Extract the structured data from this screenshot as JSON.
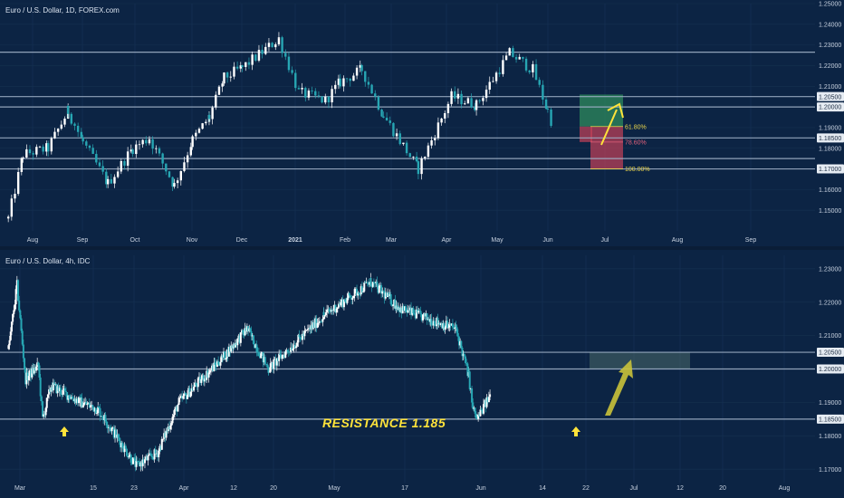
{
  "panes": [
    {
      "title": "Euro / U.S. Dollar, 1D, FOREX.com"
    },
    {
      "title": "Euro / U.S. Dollar, 4h, IDC"
    }
  ],
  "chart_data": [
    {
      "type": "candlestick",
      "timeframe": "1D",
      "ylim": [
        1.14,
        1.25
      ],
      "y_ticks": [
        "1.15000",
        "1.16000",
        "1.17000",
        "1.18000",
        "1.18500",
        "1.19000",
        "1.20000",
        "1.20500",
        "1.21000",
        "1.22000",
        "1.23000",
        "1.24000",
        "1.25000"
      ],
      "x_ticks": [
        "Aug",
        "Sep",
        "Oct",
        "Nov",
        "Dec",
        "2021",
        "Feb",
        "Mar",
        "Apr",
        "May",
        "Jun",
        "Jul",
        "Aug",
        "Sep"
      ],
      "horizontal_levels": [
        1.2265,
        1.205,
        1.2,
        1.185,
        1.175,
        1.17
      ],
      "highlighted_levels": [
        "1.20500",
        "1.20000",
        "1.18500",
        "1.17500",
        "1.17000"
      ],
      "price_path": [
        [
          "2020-07-27",
          1.146
        ],
        [
          "2020-08-05",
          1.177
        ],
        [
          "2020-08-20",
          1.18
        ],
        [
          "2020-09-01",
          1.198
        ],
        [
          "2020-09-10",
          1.183
        ],
        [
          "2020-09-25",
          1.163
        ],
        [
          "2020-10-10",
          1.18
        ],
        [
          "2020-10-20",
          1.185
        ],
        [
          "2020-11-04",
          1.162
        ],
        [
          "2020-11-15",
          1.184
        ],
        [
          "2020-11-25",
          1.195
        ],
        [
          "2020-12-04",
          1.214
        ],
        [
          "2020-12-15",
          1.219
        ],
        [
          "2021-01-06",
          1.233
        ],
        [
          "2021-01-18",
          1.207
        ],
        [
          "2021-02-03",
          1.203
        ],
        [
          "2021-02-12",
          1.212
        ],
        [
          "2021-02-25",
          1.218
        ],
        [
          "2021-03-10",
          1.196
        ],
        [
          "2021-03-31",
          1.17
        ],
        [
          "2021-04-20",
          1.205
        ],
        [
          "2021-05-05",
          1.201
        ],
        [
          "2021-05-25",
          1.226
        ],
        [
          "2021-06-08",
          1.218
        ],
        [
          "2021-06-17",
          1.198
        ],
        [
          "2021-06-21",
          1.189
        ]
      ],
      "annotations": [
        {
          "type": "fib",
          "label": "61.80%",
          "y": 1.1905,
          "color": "#e7d24a"
        },
        {
          "type": "fib",
          "label": "78.60%",
          "y": 1.183,
          "color": "#e2607a"
        },
        {
          "type": "fib",
          "label": "100.00%",
          "y": 1.17,
          "color": "#e7d24a"
        },
        {
          "type": "target-zone",
          "from": 1.1905,
          "to": 1.206,
          "color": "#2e8a5c"
        },
        {
          "type": "stop-zone",
          "from": 1.17,
          "to": 1.1905,
          "color": "#c44258"
        },
        {
          "type": "arrow",
          "direction": "up",
          "color": "#ffe33a"
        }
      ]
    },
    {
      "type": "candlestick",
      "timeframe": "4h",
      "ylim": [
        1.166,
        1.234
      ],
      "y_ticks": [
        "1.17000",
        "1.18000",
        "1.18500",
        "1.19000",
        "1.20000",
        "1.20500",
        "1.21000",
        "1.22000",
        "1.23000"
      ],
      "x_ticks": [
        "Mar",
        "15",
        "23",
        "Apr",
        "12",
        "20",
        "May",
        "17",
        "Jun",
        "14",
        "22",
        "Jul",
        "12",
        "20",
        "Aug"
      ],
      "horizontal_levels": [
        1.205,
        1.2,
        1.185
      ],
      "highlighted_levels": [
        "1.20500",
        "1.20000",
        "1.18500"
      ],
      "price_path": [
        [
          "2021-03-01",
          1.206
        ],
        [
          "2021-03-03",
          1.225
        ],
        [
          "2021-03-05",
          1.197
        ],
        [
          "2021-03-08",
          1.201
        ],
        [
          "2021-03-09",
          1.185
        ],
        [
          "2021-03-11",
          1.195
        ],
        [
          "2021-03-18",
          1.19
        ],
        [
          "2021-03-22",
          1.188
        ],
        [
          "2021-03-31",
          1.171
        ],
        [
          "2021-04-05",
          1.175
        ],
        [
          "2021-04-10",
          1.19
        ],
        [
          "2021-04-20",
          1.203
        ],
        [
          "2021-04-26",
          1.212
        ],
        [
          "2021-05-01",
          1.2
        ],
        [
          "2021-05-14",
          1.216
        ],
        [
          "2021-05-25",
          1.226
        ],
        [
          "2021-06-01",
          1.218
        ],
        [
          "2021-06-14",
          1.212
        ],
        [
          "2021-06-17",
          1.198
        ],
        [
          "2021-06-18",
          1.188
        ],
        [
          "2021-06-19",
          1.185
        ],
        [
          "2021-06-22",
          1.192
        ]
      ],
      "annotations": [
        {
          "type": "text",
          "label": "RESISTANCE 1.185"
        },
        {
          "type": "zone",
          "from": 1.2,
          "to": 1.205,
          "color": "#4a6a6a"
        },
        {
          "type": "arrow",
          "direction": "up",
          "color": "#ffe33a"
        },
        {
          "type": "marker",
          "direction": "up",
          "color": "#ffe33a"
        },
        {
          "type": "marker",
          "direction": "up",
          "color": "#ffe33a"
        }
      ]
    }
  ]
}
